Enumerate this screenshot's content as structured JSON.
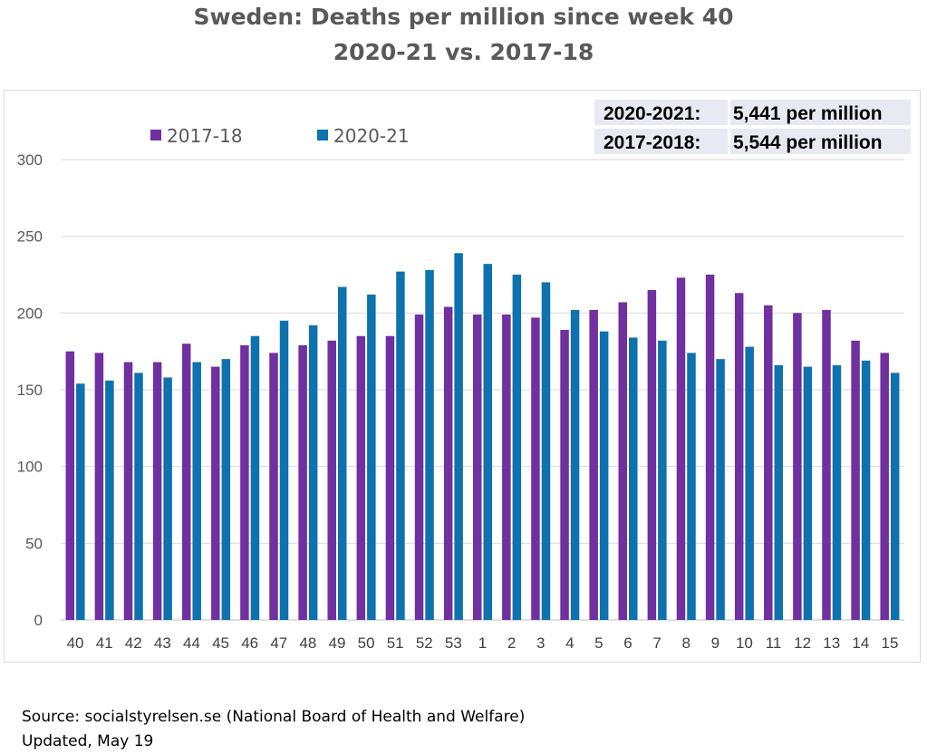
{
  "title_line1": "Sweden: Deaths per million since week 40",
  "title_line2": "2020-21 vs. 2017-18",
  "summary": [
    {
      "label": "2020-2021:",
      "value": "5,441 per million"
    },
    {
      "label": "2017-2018:",
      "value": "5,544 per million"
    }
  ],
  "source_line": "Source: socialstyrelsen.se (National Board of Health and Welfare)",
  "updated_line": "Updated, May 19",
  "chart_data": {
    "type": "bar",
    "title": "Sweden: Deaths per million since week 40",
    "subtitle": "2020-21 vs. 2017-18",
    "categories": [
      "40",
      "41",
      "42",
      "43",
      "44",
      "45",
      "46",
      "47",
      "48",
      "49",
      "50",
      "51",
      "52",
      "53",
      "1",
      "2",
      "3",
      "4",
      "5",
      "6",
      "7",
      "8",
      "9",
      "10",
      "11",
      "12",
      "13",
      "14",
      "15"
    ],
    "series": [
      {
        "name": "2017-18",
        "color": "#7030a0",
        "values": [
          175,
          174,
          168,
          168,
          180,
          165,
          179,
          174,
          179,
          182,
          185,
          185,
          199,
          204,
          199,
          199,
          197,
          189,
          202,
          207,
          215,
          223,
          225,
          213,
          205,
          200,
          202,
          182,
          174
        ]
      },
      {
        "name": "2020-21",
        "color": "#0e72ae",
        "values": [
          154,
          156,
          161,
          158,
          168,
          170,
          185,
          195,
          192,
          217,
          212,
          227,
          228,
          239,
          232,
          225,
          220,
          202,
          188,
          184,
          182,
          174,
          170,
          178,
          166,
          165,
          166,
          169,
          161
        ]
      }
    ],
    "yticks": [
      0,
      50,
      100,
      150,
      200,
      250,
      300
    ],
    "ylim": [
      0,
      300
    ],
    "legend": "top-left",
    "grid": true
  }
}
